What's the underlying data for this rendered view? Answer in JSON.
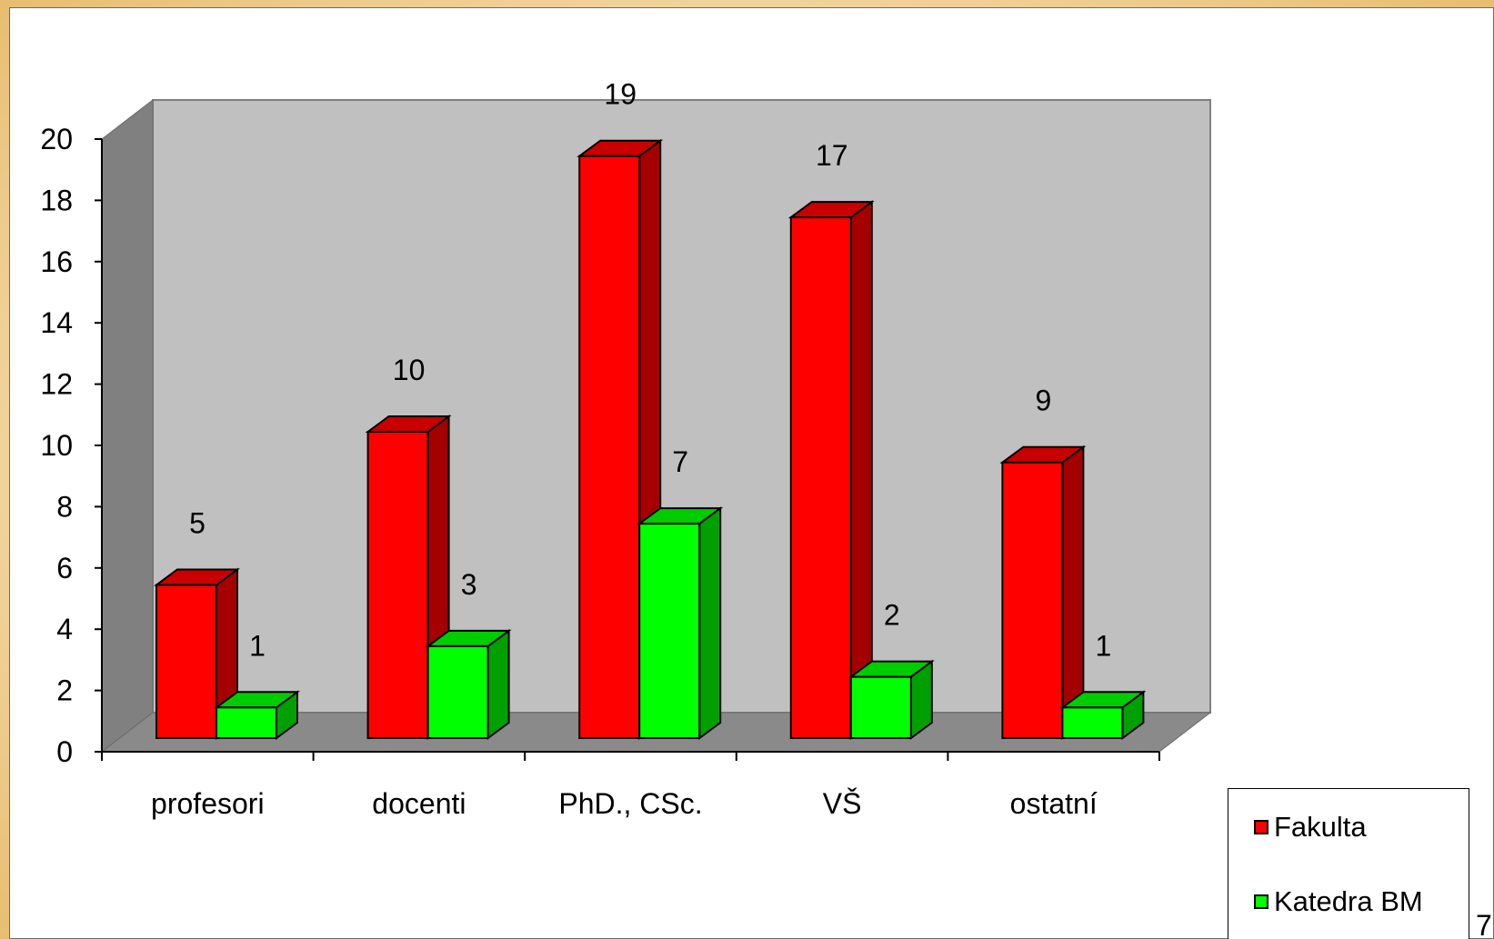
{
  "chart_data": {
    "type": "bar",
    "categories": [
      "profesori",
      "docenti",
      "PhD., CSc.",
      "VŠ",
      "ostatní"
    ],
    "series": [
      {
        "name": "Fakulta",
        "values": [
          5,
          10,
          19,
          17,
          9
        ],
        "color": "#ff0000",
        "side_color": "#a50000",
        "top_color": "#c80000"
      },
      {
        "name": "Katedra BM",
        "values": [
          1,
          3,
          7,
          2,
          1
        ],
        "color": "#00ff00",
        "side_color": "#00a000",
        "top_color": "#00cc00"
      }
    ],
    "data_labels": [
      [
        "5",
        "10",
        "19",
        "17",
        "9"
      ],
      [
        "1",
        "3",
        "7",
        "2",
        "1"
      ]
    ],
    "y_ticks": [
      "0",
      "2",
      "4",
      "6",
      "8",
      "10",
      "12",
      "14",
      "16",
      "18",
      "20"
    ],
    "ylim": [
      0,
      20
    ],
    "grid": false,
    "legend_position": "bottom-right",
    "style": "3d-column"
  },
  "legend": {
    "items": [
      {
        "label": "Fakulta",
        "color": "#ff0000"
      },
      {
        "label": "Katedra BM",
        "color": "#00ff00"
      }
    ]
  },
  "page_number": "7"
}
